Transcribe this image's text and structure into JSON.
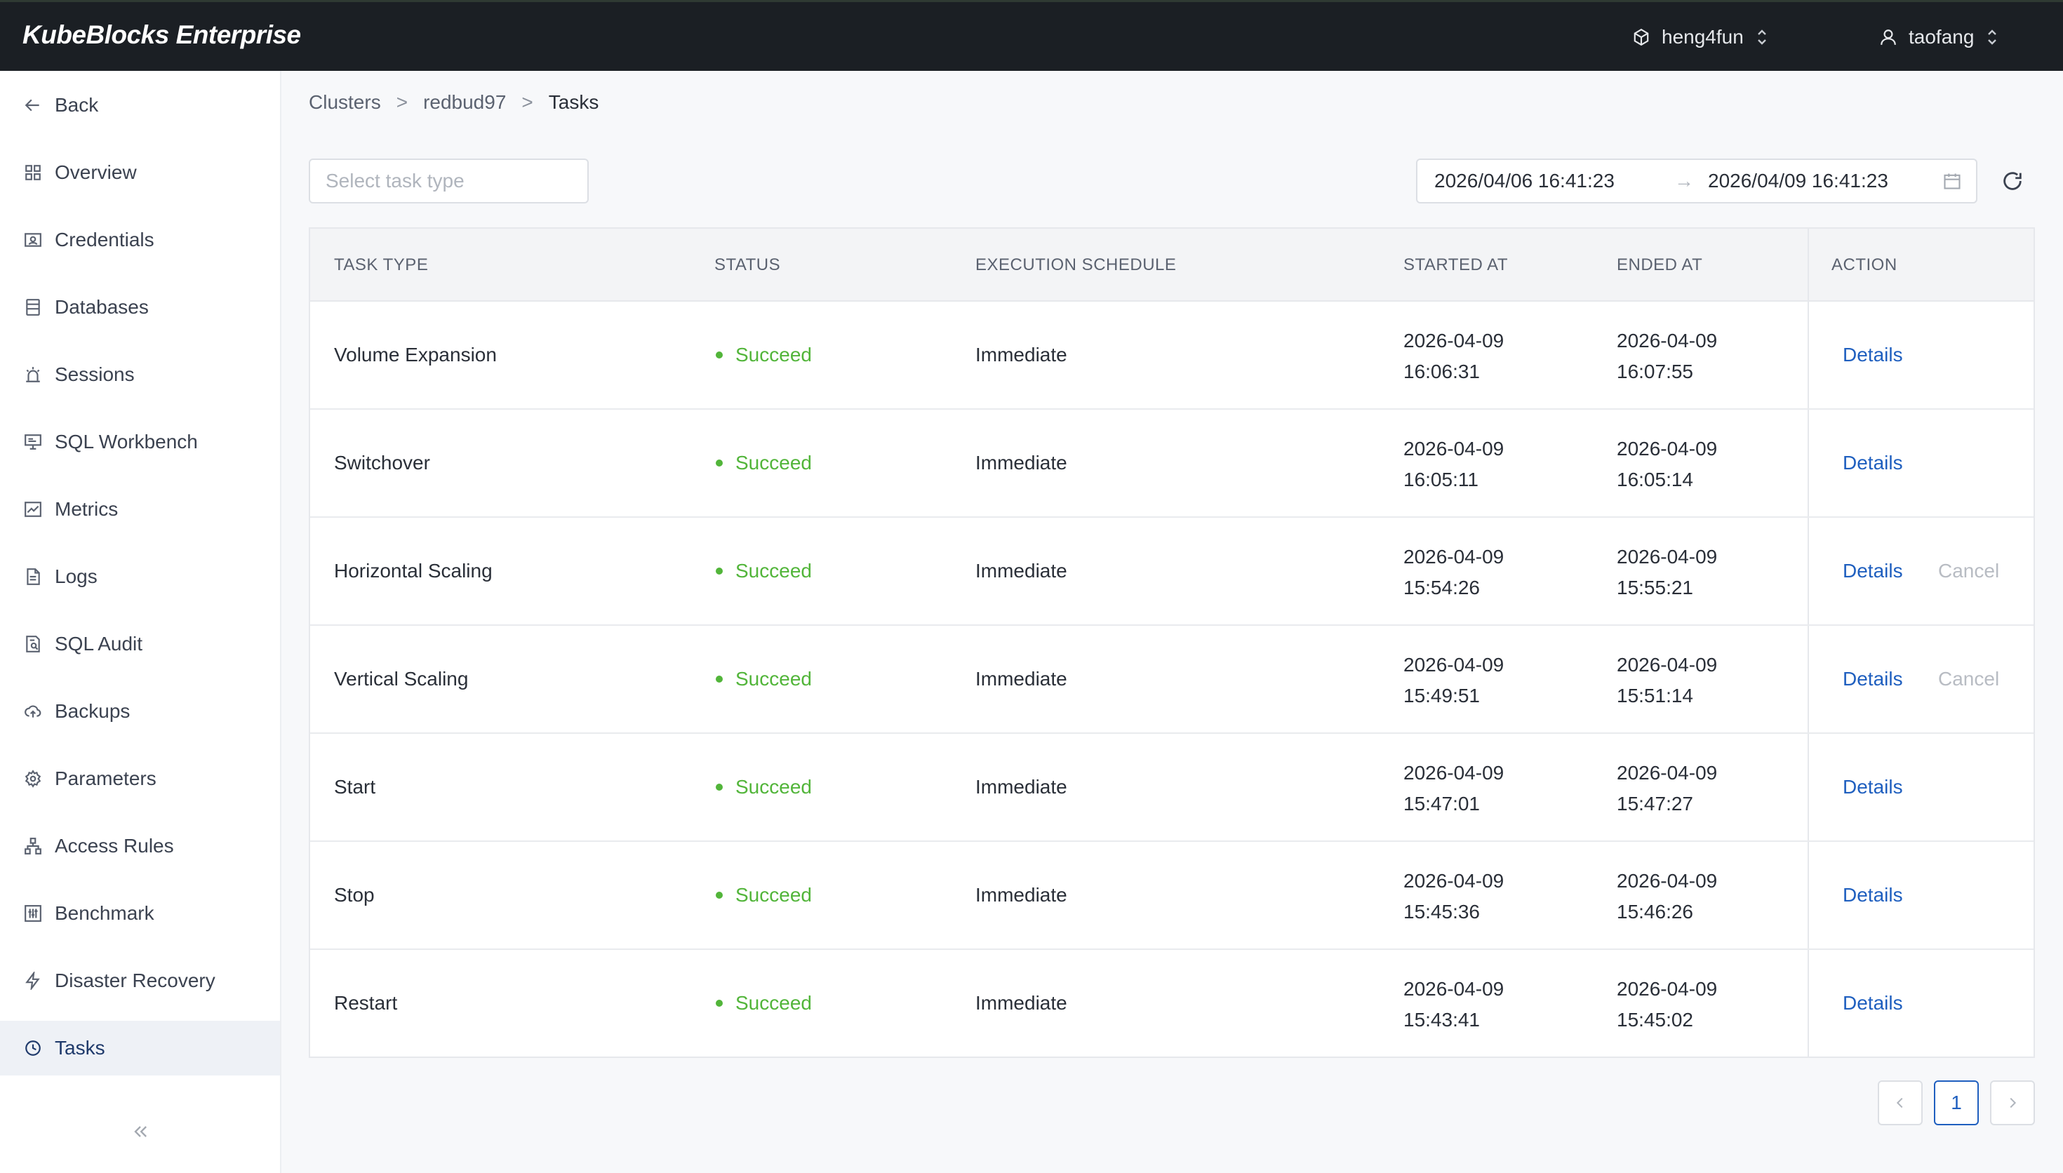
{
  "app": {
    "brand": "KubeBlocks Enterprise",
    "org": "heng4fun",
    "user": "taofang"
  },
  "sidebar": {
    "items": [
      {
        "label": "Back",
        "icon": "arrow-left-icon"
      },
      {
        "label": "Overview",
        "icon": "grid-icon"
      },
      {
        "label": "Credentials",
        "icon": "id-card-icon"
      },
      {
        "label": "Databases",
        "icon": "database-icon"
      },
      {
        "label": "Sessions",
        "icon": "alarm-icon"
      },
      {
        "label": "SQL Workbench",
        "icon": "monitor-icon"
      },
      {
        "label": "Metrics",
        "icon": "chart-icon"
      },
      {
        "label": "Logs",
        "icon": "file-icon"
      },
      {
        "label": "SQL Audit",
        "icon": "audit-icon"
      },
      {
        "label": "Backups",
        "icon": "cloud-upload-icon"
      },
      {
        "label": "Parameters",
        "icon": "gear-icon"
      },
      {
        "label": "Access Rules",
        "icon": "network-icon"
      },
      {
        "label": "Benchmark",
        "icon": "sliders-icon"
      },
      {
        "label": "Disaster Recovery",
        "icon": "bolt-icon"
      },
      {
        "label": "Tasks",
        "icon": "clock-icon",
        "active": true
      }
    ]
  },
  "breadcrumb": [
    "Clusters",
    "redbud97",
    "Tasks"
  ],
  "filters": {
    "task_type_placeholder": "Select task type",
    "date_start": "2026/04/06 16:41:23",
    "date_end": "2026/04/09 16:41:23",
    "date_arrow": "→"
  },
  "table": {
    "headers": {
      "task_type": "TASK TYPE",
      "status": "STATUS",
      "schedule": "EXECUTION SCHEDULE",
      "started": "STARTED AT",
      "ended": "ENDED AT",
      "action": "ACTION"
    },
    "rows": [
      {
        "type": "Volume Expansion",
        "status": "Succeed",
        "schedule": "Immediate",
        "started_date": "2026-04-09",
        "started_time": "16:06:31",
        "ended_date": "2026-04-09",
        "ended_time": "16:07:55",
        "details": "Details"
      },
      {
        "type": "Switchover",
        "status": "Succeed",
        "schedule": "Immediate",
        "started_date": "2026-04-09",
        "started_time": "16:05:11",
        "ended_date": "2026-04-09",
        "ended_time": "16:05:14",
        "details": "Details"
      },
      {
        "type": "Horizontal Scaling",
        "status": "Succeed",
        "schedule": "Immediate",
        "started_date": "2026-04-09",
        "started_time": "15:54:26",
        "ended_date": "2026-04-09",
        "ended_time": "15:55:21",
        "details": "Details",
        "cancel": "Cancel"
      },
      {
        "type": "Vertical Scaling",
        "status": "Succeed",
        "schedule": "Immediate",
        "started_date": "2026-04-09",
        "started_time": "15:49:51",
        "ended_date": "2026-04-09",
        "ended_time": "15:51:14",
        "details": "Details",
        "cancel": "Cancel"
      },
      {
        "type": "Start",
        "status": "Succeed",
        "schedule": "Immediate",
        "started_date": "2026-04-09",
        "started_time": "15:47:01",
        "ended_date": "2026-04-09",
        "ended_time": "15:47:27",
        "details": "Details"
      },
      {
        "type": "Stop",
        "status": "Succeed",
        "schedule": "Immediate",
        "started_date": "2026-04-09",
        "started_time": "15:45:36",
        "ended_date": "2026-04-09",
        "ended_time": "15:46:26",
        "details": "Details"
      },
      {
        "type": "Restart",
        "status": "Succeed",
        "schedule": "Immediate",
        "started_date": "2026-04-09",
        "started_time": "15:43:41",
        "ended_date": "2026-04-09",
        "ended_time": "15:45:02",
        "details": "Details"
      }
    ]
  },
  "pagination": {
    "current_page": "1"
  },
  "colors": {
    "success": "#52b53a",
    "link": "#1f5fbf",
    "topbar": "#1b1f24"
  }
}
